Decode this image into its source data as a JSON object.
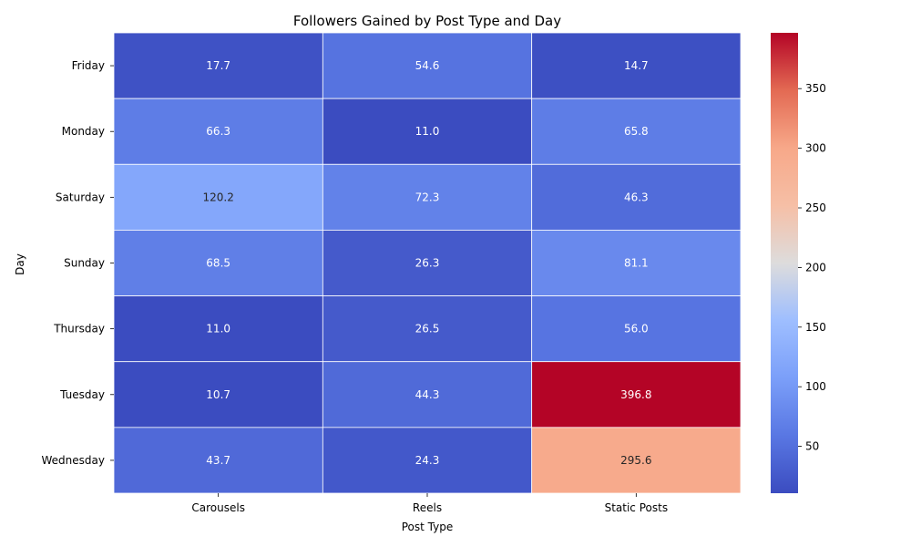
{
  "chart_data": {
    "type": "heatmap",
    "title": "Followers Gained by Post Type and Day",
    "xlabel": "Post Type",
    "ylabel": "Day",
    "x_categories": [
      "Carousels",
      "Reels",
      "Static Posts"
    ],
    "y_categories": [
      "Friday",
      "Monday",
      "Saturday",
      "Sunday",
      "Thursday",
      "Tuesday",
      "Wednesday"
    ],
    "values": [
      [
        17.7,
        54.6,
        14.7
      ],
      [
        66.3,
        11.0,
        65.8
      ],
      [
        120.2,
        72.3,
        46.3
      ],
      [
        68.5,
        26.3,
        81.1
      ],
      [
        11.0,
        26.5,
        56.0
      ],
      [
        10.7,
        44.3,
        396.8
      ],
      [
        43.7,
        24.3,
        295.6
      ]
    ],
    "colormap": "coolwarm",
    "vmin": 10.7,
    "vmax": 396.8,
    "colorbar_ticks": [
      50,
      100,
      150,
      200,
      250,
      300,
      350
    ],
    "annotations": true,
    "grid": false
  }
}
